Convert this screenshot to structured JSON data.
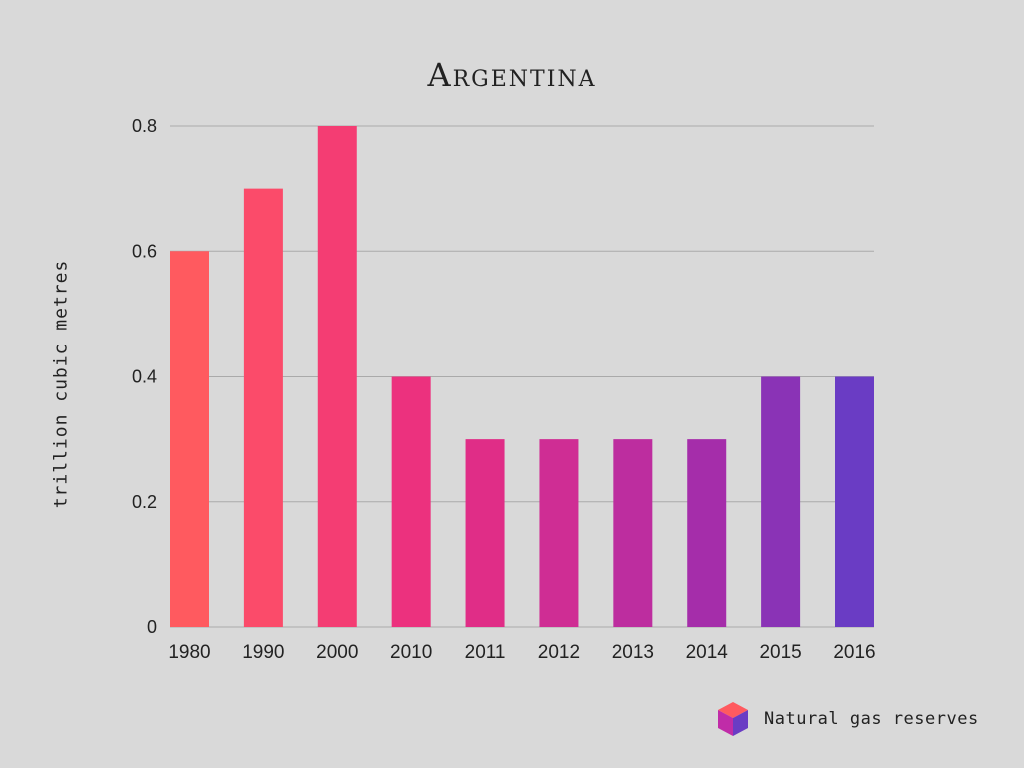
{
  "chart_data": {
    "type": "bar",
    "title": "Argentina",
    "ylabel": "trillion cubic metres",
    "xlabel": "",
    "categories": [
      "1980",
      "1990",
      "2000",
      "2010",
      "2011",
      "2012",
      "2013",
      "2014",
      "2015",
      "2016"
    ],
    "values": [
      0.6,
      0.7,
      0.8,
      0.4,
      0.3,
      0.3,
      0.3,
      0.3,
      0.4,
      0.4
    ],
    "ylim": [
      0,
      0.8
    ],
    "yticks": [
      "0",
      "0.2",
      "0.4",
      "0.6",
      "0.8"
    ],
    "grid": true,
    "bar_colors": [
      "#ff5a5f",
      "#fb4b6a",
      "#f43d73",
      "#ec317e",
      "#e02d87",
      "#cf2d94",
      "#bd2d9f",
      "#a52daa",
      "#8a33b6",
      "#6a3cc4"
    ],
    "legend": {
      "label": "Natural gas reserves",
      "placement": "bottom-right"
    }
  }
}
